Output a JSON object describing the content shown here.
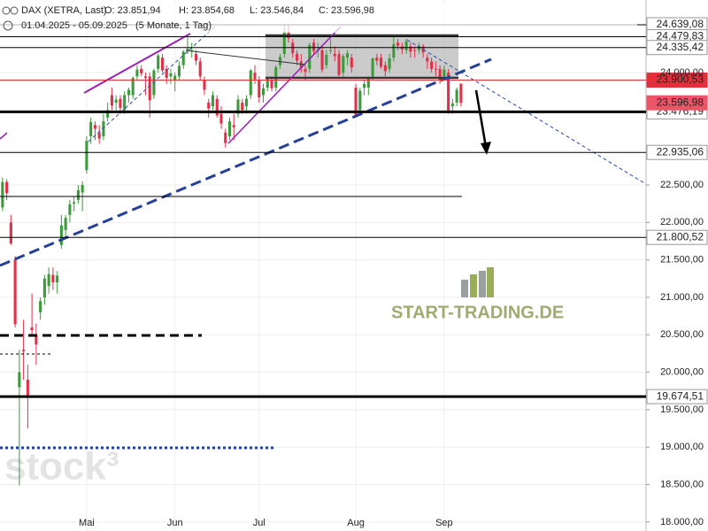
{
  "header": {
    "symbol": "DAX (XETRA, Last)",
    "open": "O: 23.851,94",
    "high": "H: 23.854,68",
    "low": "L: 23.546,84",
    "close": "C: 23.596,98",
    "range": "01.04.2025 - 05.09.2025",
    "period": "(5 Monate, 1 Tag)"
  },
  "watermarks": {
    "site": "START-TRADING.DE",
    "brand": "stock³"
  },
  "chart_data": {
    "type": "candlestick",
    "up_color": "#3c9a3c",
    "down_color": "#e0304a",
    "grid": true,
    "xlim": [
      -0.6,
      153
    ],
    "ylim": [
      17880,
      24970
    ],
    "xticks": [
      {
        "value": 20,
        "label": "Mai"
      },
      {
        "value": 41,
        "label": "Jun"
      },
      {
        "value": 61,
        "label": "Jul"
      },
      {
        "value": 84,
        "label": "Aug"
      },
      {
        "value": 105,
        "label": "Sep"
      }
    ],
    "yticks": [
      {
        "value": 18000,
        "label": "18.000,00"
      },
      {
        "value": 18500,
        "label": "18.500,00"
      },
      {
        "value": 19000,
        "label": "19.000,00"
      },
      {
        "value": 19500,
        "label": "19.500,00"
      },
      {
        "value": 20000,
        "label": "20.000,00"
      },
      {
        "value": 20500,
        "label": "20.500,00"
      },
      {
        "value": 21000,
        "label": "21.000,00"
      },
      {
        "value": 21500,
        "label": "21.500,00"
      },
      {
        "value": 22000,
        "label": "22.000,00"
      },
      {
        "value": 22500,
        "label": "22.500,00"
      },
      {
        "value": 24000,
        "label": "24.000,00"
      }
    ],
    "levels": [
      {
        "value": 24639.08,
        "label": "24.639,08",
        "color": "#000000",
        "line_width": 1,
        "label_bg": "#ffffff",
        "label_color": "#000000"
      },
      {
        "value": 24479.83,
        "label": "24.479,83",
        "color": "#000000",
        "line_width": 1,
        "label_bg": "#ffffff",
        "label_color": "#000000"
      },
      {
        "value": 24335.42,
        "label": "24.335,42",
        "color": "#000000",
        "line_width": 1,
        "label_bg": "#ffffff",
        "label_color": "#000000"
      },
      {
        "value": 23900.53,
        "label": "23.900,53",
        "color": "#e0303a",
        "line_width": 1,
        "label_bg": "#e0303a",
        "label_color": "#ffffff"
      },
      {
        "value": 23476.19,
        "label": "23.476,19",
        "color": "#000000",
        "line_width": 3,
        "label_bg": "#ffffff",
        "label_color": "#000000"
      },
      {
        "value": 23596.98,
        "label": "23.596,98",
        "color": null,
        "line_width": 0,
        "label_bg": "#ec5468",
        "label_color": "#ffffff"
      },
      {
        "value": 22935.06,
        "label": "22.935,06",
        "color": "#000000",
        "line_width": 1,
        "label_bg": "#ffffff",
        "label_color": "#000000"
      },
      {
        "value": 21800.52,
        "label": "21.800,52",
        "color": "#000000",
        "line_width": 1,
        "label_bg": "#ffffff",
        "label_color": "#000000"
      },
      {
        "value": 19674.51,
        "label": "19.674,51",
        "color": "#000000",
        "line_width": 3,
        "label_bg": "#ffffff",
        "label_color": "#000000"
      }
    ],
    "candles": [
      {
        "open": 22200,
        "high": 22600,
        "low": 22150,
        "close": 22540
      },
      {
        "open": 22540,
        "high": 22580,
        "low": 22300,
        "close": 22390
      },
      {
        "open": 22000,
        "high": 22100,
        "low": 21700,
        "close": 21720
      },
      {
        "open": 21500,
        "high": 21550,
        "low": 20600,
        "close": 20640
      },
      {
        "open": 19800,
        "high": 20300,
        "low": 18490,
        "close": 20000
      },
      {
        "open": 20300,
        "high": 20700,
        "low": 19900,
        "close": 20280
      },
      {
        "open": 19900,
        "high": 20100,
        "low": 19250,
        "close": 19670
      },
      {
        "open": 20600,
        "high": 21050,
        "low": 20500,
        "close": 20560
      },
      {
        "open": 20500,
        "high": 20650,
        "low": 20100,
        "close": 20370
      },
      {
        "open": 20800,
        "high": 21000,
        "low": 20700,
        "close": 20950
      },
      {
        "open": 21000,
        "high": 21300,
        "low": 20900,
        "close": 21250
      },
      {
        "open": 21150,
        "high": 21400,
        "low": 21050,
        "close": 21310
      },
      {
        "open": 21300,
        "high": 21400,
        "low": 21100,
        "close": 21200
      },
      {
        "open": 21200,
        "high": 21350,
        "low": 21050,
        "close": 21290
      },
      {
        "open": 21700,
        "high": 22100,
        "low": 21650,
        "close": 21960
      },
      {
        "open": 21900,
        "high": 22100,
        "low": 21800,
        "close": 22060
      },
      {
        "open": 22100,
        "high": 22300,
        "low": 22000,
        "close": 22240
      },
      {
        "open": 22250,
        "high": 22350,
        "low": 22150,
        "close": 22270
      },
      {
        "open": 22300,
        "high": 22500,
        "low": 22250,
        "close": 22430
      },
      {
        "open": 22400,
        "high": 22550,
        "low": 22150,
        "close": 22500
      },
      {
        "open": 22700,
        "high": 23150,
        "low": 22650,
        "close": 23090
      },
      {
        "open": 23150,
        "high": 23400,
        "low": 23050,
        "close": 23340
      },
      {
        "open": 23300,
        "high": 23350,
        "low": 23100,
        "close": 23250
      },
      {
        "open": 23200,
        "high": 23300,
        "low": 23050,
        "close": 23120
      },
      {
        "open": 23150,
        "high": 23450,
        "low": 23100,
        "close": 23350
      },
      {
        "open": 23400,
        "high": 23600,
        "low": 23350,
        "close": 23500
      },
      {
        "open": 23700,
        "high": 23800,
        "low": 23500,
        "close": 23560
      },
      {
        "open": 23600,
        "high": 23700,
        "low": 23500,
        "close": 23640
      },
      {
        "open": 23650,
        "high": 23700,
        "low": 23450,
        "close": 23530
      },
      {
        "open": 23500,
        "high": 23750,
        "low": 23450,
        "close": 23700
      },
      {
        "open": 23700,
        "high": 23800,
        "low": 23600,
        "close": 23770
      },
      {
        "open": 23700,
        "high": 23950,
        "low": 23650,
        "close": 23930
      },
      {
        "open": 23950,
        "high": 24100,
        "low": 23900,
        "close": 24040
      },
      {
        "open": 24050,
        "high": 24100,
        "low": 23950,
        "close": 23990
      },
      {
        "open": 23950,
        "high": 24000,
        "low": 23700,
        "close": 23930
      },
      {
        "open": 23950,
        "high": 24000,
        "low": 23400,
        "close": 23630
      },
      {
        "open": 23700,
        "high": 24050,
        "low": 23650,
        "close": 24030
      },
      {
        "open": 24050,
        "high": 24250,
        "low": 24000,
        "close": 24230
      },
      {
        "open": 24200,
        "high": 24250,
        "low": 24000,
        "close": 24030
      },
      {
        "open": 24050,
        "high": 24100,
        "low": 23850,
        "close": 23930
      },
      {
        "open": 23950,
        "high": 24050,
        "low": 23850,
        "close": 23990
      },
      {
        "open": 23900,
        "high": 24000,
        "low": 23750,
        "close": 23960
      },
      {
        "open": 23950,
        "high": 24150,
        "low": 23900,
        "close": 24090
      },
      {
        "open": 24100,
        "high": 24300,
        "low": 24050,
        "close": 24280
      },
      {
        "open": 24300,
        "high": 24480,
        "low": 24250,
        "close": 24320
      },
      {
        "open": 24300,
        "high": 24400,
        "low": 24200,
        "close": 24300
      },
      {
        "open": 24250,
        "high": 24300,
        "low": 24100,
        "close": 24160
      },
      {
        "open": 24150,
        "high": 24200,
        "low": 23900,
        "close": 23950
      },
      {
        "open": 23900,
        "high": 23950,
        "low": 23700,
        "close": 23770
      },
      {
        "open": 23600,
        "high": 23650,
        "low": 23400,
        "close": 23520
      },
      {
        "open": 23550,
        "high": 23750,
        "low": 23500,
        "close": 23700
      },
      {
        "open": 23650,
        "high": 23700,
        "low": 23400,
        "close": 23430
      },
      {
        "open": 23450,
        "high": 23550,
        "low": 23250,
        "close": 23320
      },
      {
        "open": 23200,
        "high": 23250,
        "low": 23000,
        "close": 23060
      },
      {
        "open": 23150,
        "high": 23400,
        "low": 23100,
        "close": 23350
      },
      {
        "open": 23300,
        "high": 23450,
        "low": 23100,
        "close": 23270
      },
      {
        "open": 23450,
        "high": 23700,
        "low": 23400,
        "close": 23640
      },
      {
        "open": 23600,
        "high": 23650,
        "low": 23450,
        "close": 23500
      },
      {
        "open": 23550,
        "high": 23700,
        "low": 23450,
        "close": 23650
      },
      {
        "open": 23700,
        "high": 24050,
        "low": 23650,
        "close": 24030
      },
      {
        "open": 24000,
        "high": 24100,
        "low": 23850,
        "close": 23910
      },
      {
        "open": 23900,
        "high": 23950,
        "low": 23600,
        "close": 23670
      },
      {
        "open": 23700,
        "high": 23850,
        "low": 23600,
        "close": 23790
      },
      {
        "open": 23800,
        "high": 23950,
        "low": 23750,
        "close": 23930
      },
      {
        "open": 23900,
        "high": 23950,
        "low": 23750,
        "close": 23790
      },
      {
        "open": 23800,
        "high": 24100,
        "low": 23750,
        "close": 24070
      },
      {
        "open": 24100,
        "high": 24250,
        "low": 24050,
        "close": 24210
      },
      {
        "open": 24250,
        "high": 24650,
        "low": 24200,
        "close": 24550
      },
      {
        "open": 24550,
        "high": 24640,
        "low": 24400,
        "close": 24460
      },
      {
        "open": 24400,
        "high": 24450,
        "low": 24200,
        "close": 24260
      },
      {
        "open": 24250,
        "high": 24300,
        "low": 24100,
        "close": 24160
      },
      {
        "open": 24150,
        "high": 24250,
        "low": 24000,
        "close": 24060
      },
      {
        "open": 24050,
        "high": 24100,
        "low": 23900,
        "close": 24010
      },
      {
        "open": 24050,
        "high": 24400,
        "low": 24000,
        "close": 24370
      },
      {
        "open": 24400,
        "high": 24450,
        "low": 24250,
        "close": 24290
      },
      {
        "open": 24300,
        "high": 24400,
        "low": 24200,
        "close": 24310
      },
      {
        "open": 24300,
        "high": 24350,
        "low": 24000,
        "close": 24040
      },
      {
        "open": 24100,
        "high": 24300,
        "low": 24050,
        "close": 24240
      },
      {
        "open": 24300,
        "high": 24450,
        "low": 24250,
        "close": 24300
      },
      {
        "open": 24250,
        "high": 24350,
        "low": 24150,
        "close": 24220
      },
      {
        "open": 24250,
        "high": 24300,
        "low": 23950,
        "close": 23970
      },
      {
        "open": 24000,
        "high": 24250,
        "low": 23950,
        "close": 24220
      },
      {
        "open": 24200,
        "high": 24300,
        "low": 24100,
        "close": 24260
      },
      {
        "open": 24200,
        "high": 24250,
        "low": 24000,
        "close": 24070
      },
      {
        "open": 23800,
        "high": 23850,
        "low": 23400,
        "close": 23430
      },
      {
        "open": 23500,
        "high": 23800,
        "low": 23450,
        "close": 23760
      },
      {
        "open": 23800,
        "high": 23900,
        "low": 23700,
        "close": 23850
      },
      {
        "open": 23800,
        "high": 23950,
        "low": 23700,
        "close": 23920
      },
      {
        "open": 23950,
        "high": 24200,
        "low": 23900,
        "close": 24190
      },
      {
        "open": 24200,
        "high": 24250,
        "low": 24100,
        "close": 24160
      },
      {
        "open": 24200,
        "high": 24250,
        "low": 24050,
        "close": 24080
      },
      {
        "open": 24100,
        "high": 24150,
        "low": 23950,
        "close": 24020
      },
      {
        "open": 24050,
        "high": 24250,
        "low": 24000,
        "close": 24190
      },
      {
        "open": 24200,
        "high": 24480,
        "low": 24150,
        "close": 24380
      },
      {
        "open": 24400,
        "high": 24450,
        "low": 24300,
        "close": 24360
      },
      {
        "open": 24350,
        "high": 24400,
        "low": 24250,
        "close": 24310
      },
      {
        "open": 24300,
        "high": 24450,
        "low": 24250,
        "close": 24420
      },
      {
        "open": 24350,
        "high": 24400,
        "low": 24200,
        "close": 24280
      },
      {
        "open": 24300,
        "high": 24350,
        "low": 24200,
        "close": 24290
      },
      {
        "open": 24300,
        "high": 24400,
        "low": 24250,
        "close": 24360
      },
      {
        "open": 24350,
        "high": 24380,
        "low": 24200,
        "close": 24270
      },
      {
        "open": 24200,
        "high": 24250,
        "low": 24050,
        "close": 24150
      },
      {
        "open": 24150,
        "high": 24200,
        "low": 24000,
        "close": 24050
      },
      {
        "open": 24050,
        "high": 24150,
        "low": 23950,
        "close": 24040
      },
      {
        "open": 24050,
        "high": 24100,
        "low": 23850,
        "close": 23900
      },
      {
        "open": 23950,
        "high": 24100,
        "low": 23900,
        "close": 24040
      },
      {
        "open": 24000,
        "high": 24050,
        "low": 23450,
        "close": 23490
      },
      {
        "open": 23550,
        "high": 23650,
        "low": 23450,
        "close": 23590
      },
      {
        "open": 23600,
        "high": 23800,
        "low": 23550,
        "close": 23770
      },
      {
        "open": 23851.94,
        "high": 23854.68,
        "low": 23546.84,
        "close": 23596.98
      }
    ]
  }
}
